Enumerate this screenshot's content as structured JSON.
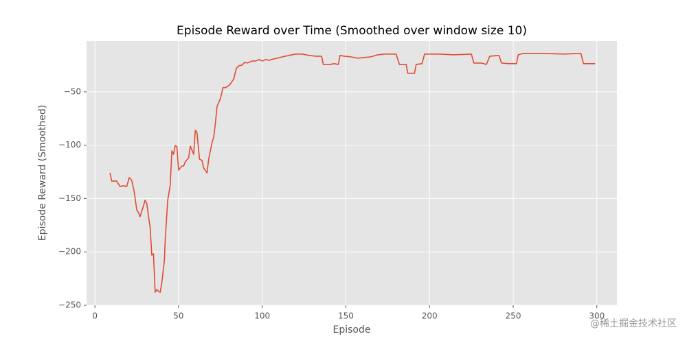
{
  "chart_data": {
    "type": "line",
    "title": "Episode Reward over Time (Smoothed over window size 10)",
    "x_label": "Episode",
    "y_label": "Episode Reward (Smoothed)",
    "watermark": "@稀土掘金技术社区",
    "series": [
      {
        "name": "Episode Reward (Smoothed)",
        "color": "#e24a33",
        "x": [
          9,
          10,
          13,
          15,
          17,
          19,
          20.5,
          22,
          23.5,
          25,
          26,
          27,
          28,
          30,
          31,
          32,
          33,
          34,
          35,
          36,
          37,
          38,
          39,
          40,
          41.5,
          42,
          43.5,
          45,
          46,
          47,
          48,
          49,
          50,
          52,
          53,
          54,
          56,
          57,
          59,
          60,
          61,
          62.5,
          64,
          65,
          67,
          68,
          70,
          71,
          72,
          73,
          75,
          76.5,
          78,
          80.5,
          83,
          84.5,
          86,
          88,
          89.5,
          91,
          94,
          96,
          98,
          100,
          102,
          104,
          107,
          109,
          112,
          116,
          120,
          124,
          128,
          132,
          135.5,
          136.5,
          140.5,
          143,
          145.5,
          146.5,
          149,
          153,
          157,
          161,
          165,
          169,
          173,
          180,
          182,
          186,
          187,
          191,
          192,
          195.5,
          197,
          206,
          214.5,
          225,
          226.5,
          231,
          234,
          236,
          241.5,
          243,
          247.5,
          252,
          253,
          256,
          268,
          280,
          290.5,
          292,
          299
        ],
        "values": [
          -125.9,
          -133.6,
          -133.6,
          -138.7,
          -138,
          -138.7,
          -130.4,
          -133,
          -143.9,
          -160.6,
          -163,
          -167,
          -161.9,
          -151.6,
          -154.8,
          -166.4,
          -177.3,
          -203,
          -201.8,
          -237.8,
          -235.2,
          -237,
          -237.8,
          -228.8,
          -208.2,
          -188.9,
          -151.6,
          -137.5,
          -105.3,
          -108.5,
          -100.2,
          -101.4,
          -123.3,
          -119.5,
          -119.5,
          -115.6,
          -111.7,
          -100.8,
          -108.5,
          -86,
          -88,
          -113,
          -114.3,
          -121.4,
          -125.9,
          -113,
          -97.6,
          -92.4,
          -79.6,
          -63.5,
          -56.4,
          -46.1,
          -46.1,
          -43.6,
          -37.8,
          -28.1,
          -25.6,
          -24.9,
          -22.3,
          -23,
          -21.1,
          -21.1,
          -19.8,
          -21.1,
          -19.8,
          -20.4,
          -19.1,
          -18.5,
          -17.2,
          -15.9,
          -14.6,
          -14.6,
          -15.9,
          -16.6,
          -16.6,
          -24.3,
          -24.3,
          -23.6,
          -24.3,
          -15.9,
          -16.6,
          -17.2,
          -18.5,
          -17.8,
          -17.2,
          -15.3,
          -14.6,
          -14.6,
          -24.3,
          -24.3,
          -32.6,
          -32.6,
          -24.3,
          -23.6,
          -14.6,
          -14.6,
          -15.3,
          -14.6,
          -23,
          -23,
          -24.3,
          -16.6,
          -15.9,
          -23,
          -23.6,
          -23.6,
          -15.3,
          -14,
          -14,
          -14.6,
          -14,
          -23.6,
          -23.6
        ]
      }
    ],
    "xlim": [
      -5,
      312
    ],
    "ylim": [
      -250,
      -2.5
    ],
    "xticks": [
      0,
      50,
      100,
      150,
      200,
      250,
      300
    ],
    "yticks": [
      {
        "value": -250,
        "label": "−250"
      },
      {
        "value": -200,
        "label": "−200"
      },
      {
        "value": -150,
        "label": "−150"
      },
      {
        "value": -100,
        "label": "−100"
      },
      {
        "value": -50,
        "label": "−50"
      }
    ],
    "grid": true
  }
}
